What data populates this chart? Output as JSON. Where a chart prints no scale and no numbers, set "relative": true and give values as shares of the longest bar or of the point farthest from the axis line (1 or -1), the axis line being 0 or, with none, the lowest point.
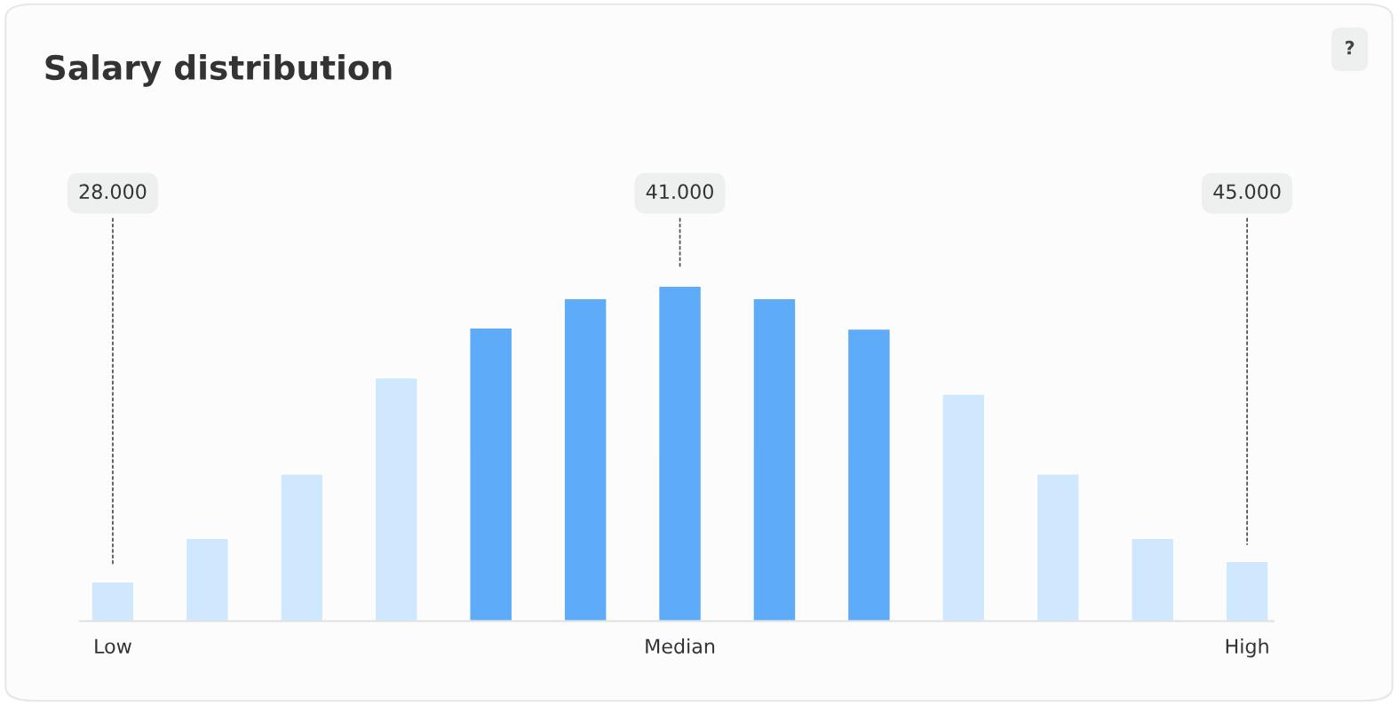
{
  "chart_data": {
    "type": "bar",
    "title": "Salary distribution",
    "relative": true,
    "categories": [
      "Low",
      null,
      null,
      null,
      null,
      null,
      "Median",
      null,
      null,
      null,
      null,
      null,
      "High"
    ],
    "values": [
      0.117,
      0.247,
      0.439,
      0.726,
      0.875,
      0.963,
      1,
      0.963,
      0.872,
      0.678,
      0.439,
      0.247,
      0.178
    ],
    "colors": [
      "#cfe8fe",
      "#cfe8fe",
      "#cfe8fe",
      "#cfe8fe",
      "#5eabfa",
      "#5eabfa",
      "#5eabfa",
      "#5eabfa",
      "#5eabfa",
      "#cfe8fe",
      "#cfe8fe",
      "#cfe8fe",
      "#cfe8fe"
    ],
    "annotations": [
      "28.000",
      "41.000",
      "45.000",
      "?"
    ],
    "grid": false,
    "legend": false
  }
}
